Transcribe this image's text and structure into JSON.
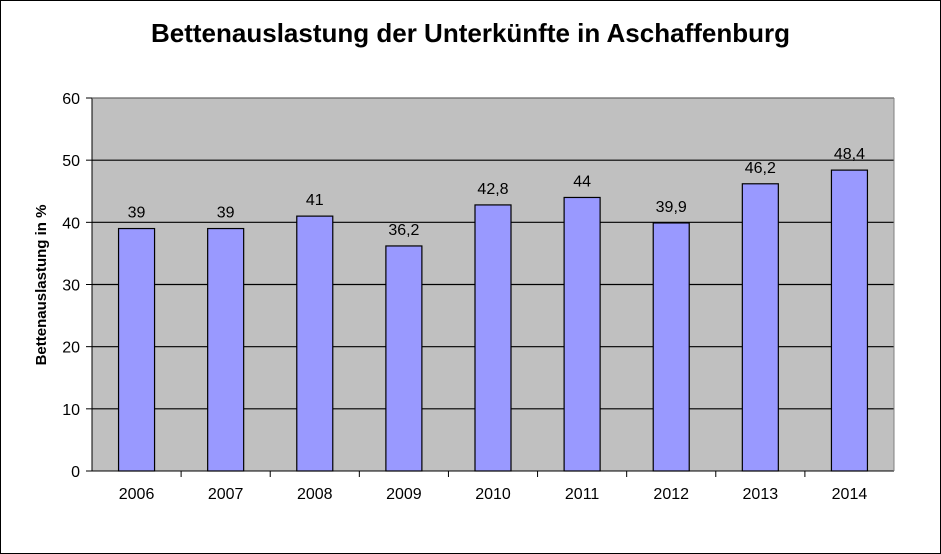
{
  "chart_data": {
    "type": "bar",
    "title": "Bettenauslastung der Unterkünfte in Aschaffenburg",
    "xlabel": "",
    "ylabel": "Bettenauslastung in %",
    "categories": [
      "2006",
      "2007",
      "2008",
      "2009",
      "2010",
      "2011",
      "2012",
      "2013",
      "2014"
    ],
    "values": [
      39,
      39,
      41,
      36.2,
      42.8,
      44,
      39.9,
      46.2,
      48.4
    ],
    "value_labels": [
      "39",
      "39",
      "41",
      "36,2",
      "42,8",
      "44",
      "39,9",
      "46,2",
      "48,4"
    ],
    "ylim": [
      0,
      60
    ],
    "yticks": [
      "0",
      "10",
      "20",
      "30",
      "40",
      "50",
      "60"
    ],
    "grid": true,
    "legend": "none",
    "colors": {
      "bar": "#9999ff",
      "plot_background": "#c0c0c0",
      "gridline": "#000000",
      "text": "#000000"
    }
  }
}
